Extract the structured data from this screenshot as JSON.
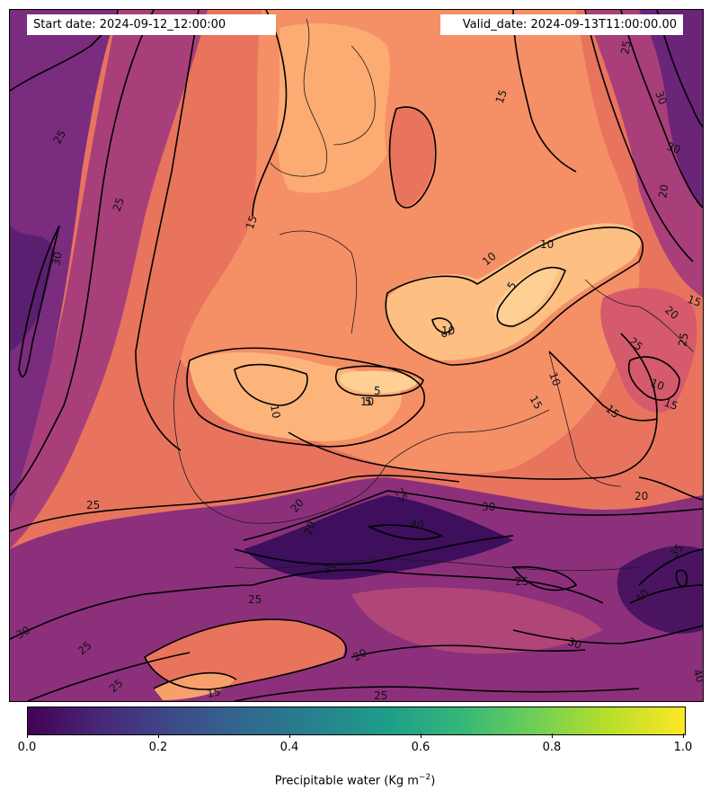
{
  "header": {
    "start_date": "Start date: 2024-09-12_12:00:00",
    "valid_date": "Valid_date: 2024-09-13T11:00:00.00"
  },
  "colorbar": {
    "ticks": [
      "0.0",
      "0.2",
      "0.4",
      "0.6",
      "0.8",
      "1.0"
    ],
    "label_main": "Precipitable water (Kg m",
    "label_exp": "−2",
    "label_close": ")",
    "colormap": "viridis"
  },
  "map": {
    "field_colormap": "magma",
    "colors": {
      "dark_purple": "#3b0f5a",
      "purple": "#6a2478",
      "magenta": "#a03a7a",
      "rose": "#d45a6c",
      "salmon": "#f07a62",
      "light_orange": "#fda66c",
      "pale": "#fec88a"
    },
    "contour_labels": [
      "5",
      "5",
      "5",
      "5",
      "10",
      "10",
      "10",
      "10",
      "10",
      "10",
      "10",
      "15",
      "15",
      "15",
      "15",
      "15",
      "15",
      "15",
      "20",
      "20",
      "20",
      "20",
      "20",
      "20",
      "25",
      "25",
      "25",
      "25",
      "25",
      "25",
      "25",
      "25",
      "25",
      "25",
      "25",
      "25",
      "30",
      "30",
      "30",
      "30",
      "30",
      "30",
      "35",
      "35",
      "40",
      "40",
      "40"
    ]
  }
}
